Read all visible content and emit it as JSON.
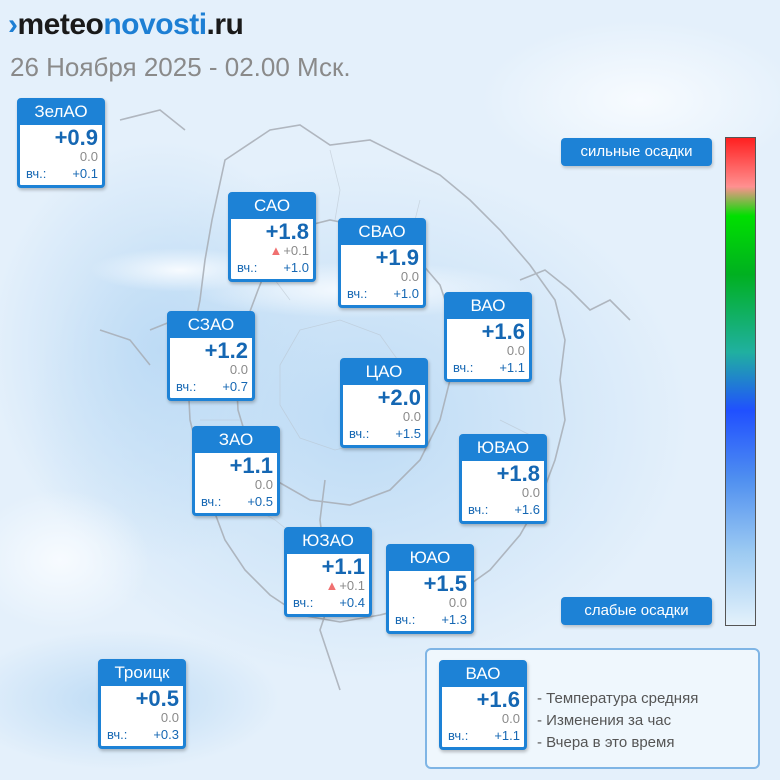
{
  "brand": {
    "mark": "›",
    "part1": "meteo",
    "part2": "novosti",
    "part3": ".ru"
  },
  "datetime": "26 Ноября 2025 - 02.00 Мск.",
  "districts": [
    {
      "id": "zelao",
      "name": "ЗелАО",
      "temp": "+0.9",
      "change": "0.0",
      "change_up": false,
      "yesterday_label": "вч.:",
      "yesterday": "+0.1"
    },
    {
      "id": "sao",
      "name": "САО",
      "temp": "+1.8",
      "change": "+0.1",
      "change_up": true,
      "yesterday_label": "вч.:",
      "yesterday": "+1.0"
    },
    {
      "id": "svao",
      "name": "СВАО",
      "temp": "+1.9",
      "change": "0.0",
      "change_up": false,
      "yesterday_label": "вч.:",
      "yesterday": "+1.0"
    },
    {
      "id": "vao",
      "name": "ВАО",
      "temp": "+1.6",
      "change": "0.0",
      "change_up": false,
      "yesterday_label": "вч.:",
      "yesterday": "+1.1"
    },
    {
      "id": "szao",
      "name": "СЗАО",
      "temp": "+1.2",
      "change": "0.0",
      "change_up": false,
      "yesterday_label": "вч.:",
      "yesterday": "+0.7"
    },
    {
      "id": "tsao",
      "name": "ЦАО",
      "temp": "+2.0",
      "change": "0.0",
      "change_up": false,
      "yesterday_label": "вч.:",
      "yesterday": "+1.5"
    },
    {
      "id": "zao",
      "name": "ЗАО",
      "temp": "+1.1",
      "change": "0.0",
      "change_up": false,
      "yesterday_label": "вч.:",
      "yesterday": "+0.5"
    },
    {
      "id": "yuvao",
      "name": "ЮВАО",
      "temp": "+1.8",
      "change": "0.0",
      "change_up": false,
      "yesterday_label": "вч.:",
      "yesterday": "+1.6"
    },
    {
      "id": "yuzao",
      "name": "ЮЗАО",
      "temp": "+1.1",
      "change": "+0.1",
      "change_up": true,
      "yesterday_label": "вч.:",
      "yesterday": "+0.4"
    },
    {
      "id": "yuao",
      "name": "ЮАО",
      "temp": "+1.5",
      "change": "0.0",
      "change_up": false,
      "yesterday_label": "вч.:",
      "yesterday": "+1.3"
    },
    {
      "id": "troitsk",
      "name": "Троицк",
      "temp": "+0.5",
      "change": "0.0",
      "change_up": false,
      "yesterday_label": "вч.:",
      "yesterday": "+0.3"
    }
  ],
  "precip_scale": {
    "strong_label": "сильные осадки",
    "weak_label": "слабые осадки",
    "colors": [
      "#ff2020",
      "#00e000",
      "#2050ff",
      "#e3f1fb"
    ]
  },
  "legend": {
    "sample": {
      "name": "ВАО",
      "temp": "+1.6",
      "change": "0.0",
      "yesterday_label": "вч.:",
      "yesterday": "+1.1"
    },
    "items": [
      "- Температура средняя",
      "- Изменения за час",
      "- Вчера в это время"
    ]
  },
  "colors": {
    "accent": "#1d82d6",
    "temp_text": "#1567b3",
    "increase_marker": "#f07070"
  }
}
